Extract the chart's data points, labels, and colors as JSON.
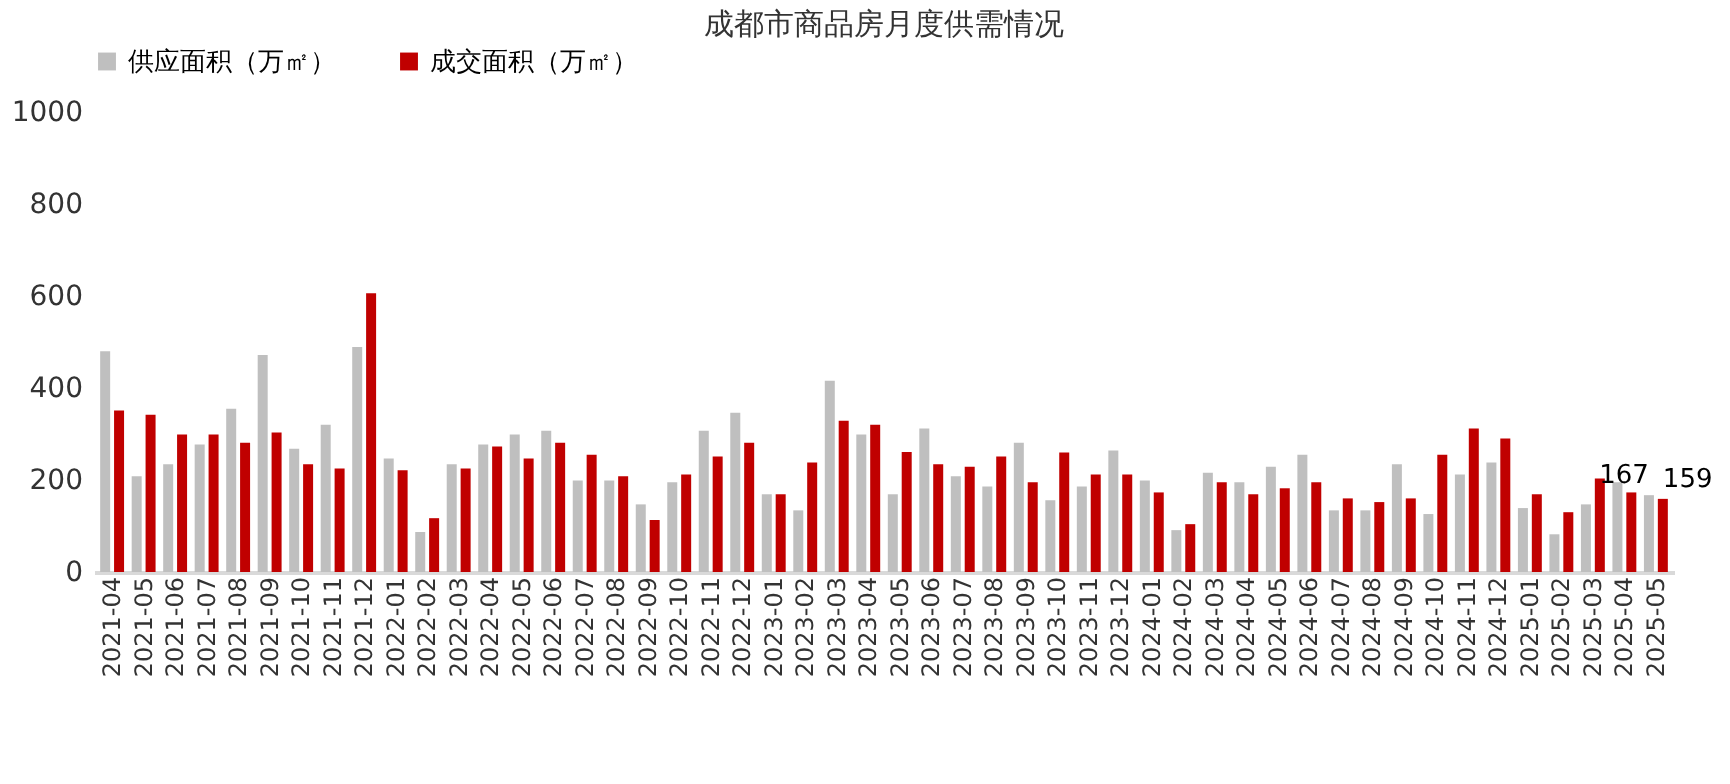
{
  "chart_data": {
    "type": "bar",
    "title": "成都市商品房月度供需情况",
    "categories": [
      "2021-04",
      "2021-05",
      "2021-06",
      "2021-07",
      "2021-08",
      "2021-09",
      "2021-10",
      "2021-11",
      "2021-12",
      "2022-01",
      "2022-02",
      "2022-03",
      "2022-04",
      "2022-05",
      "2022-06",
      "2022-07",
      "2022-08",
      "2022-09",
      "2022-10",
      "2022-11",
      "2022-12",
      "2023-01",
      "2023-02",
      "2023-03",
      "2023-04",
      "2023-05",
      "2023-06",
      "2023-07",
      "2023-08",
      "2023-09",
      "2023-10",
      "2023-11",
      "2023-12",
      "2024-01",
      "2024-02",
      "2024-03",
      "2024-04",
      "2024-05",
      "2024-06",
      "2024-07",
      "2024-08",
      "2024-09",
      "2024-10",
      "2024-11",
      "2024-12",
      "2025-01",
      "2025-02",
      "2025-03",
      "2025-04",
      "2025-05"
    ],
    "series": [
      {
        "name": "供应面积（万㎡）",
        "color": "#bfbfbf",
        "values": [
          480,
          208,
          234,
          277,
          355,
          472,
          268,
          320,
          489,
          247,
          87,
          234,
          277,
          299,
          307,
          199,
          199,
          147,
          195,
          307,
          346,
          169,
          134,
          416,
          299,
          169,
          312,
          208,
          186,
          281,
          156,
          186,
          264,
          199,
          91,
          216,
          195,
          229,
          255,
          134,
          134,
          234,
          126,
          212,
          238,
          139,
          82,
          147,
          195,
          167
        ],
        "value_labels": [
          null,
          null,
          null,
          null,
          null,
          null,
          null,
          null,
          null,
          null,
          null,
          null,
          null,
          null,
          null,
          null,
          null,
          null,
          null,
          null,
          null,
          null,
          null,
          null,
          null,
          null,
          null,
          null,
          null,
          null,
          null,
          null,
          null,
          null,
          null,
          null,
          null,
          null,
          null,
          null,
          null,
          null,
          null,
          null,
          null,
          null,
          null,
          null,
          null,
          "167"
        ]
      },
      {
        "name": "成交面积（万㎡）",
        "color": "#c00000",
        "values": [
          351,
          342,
          299,
          299,
          281,
          303,
          234,
          225,
          606,
          221,
          117,
          225,
          273,
          247,
          281,
          255,
          208,
          113,
          212,
          251,
          281,
          169,
          238,
          329,
          320,
          261,
          234,
          229,
          251,
          195,
          260,
          212,
          212,
          173,
          104,
          195,
          169,
          182,
          195,
          160,
          152,
          160,
          255,
          312,
          290,
          169,
          130,
          203,
          173,
          159
        ],
        "value_labels": [
          null,
          null,
          null,
          null,
          null,
          null,
          null,
          null,
          null,
          null,
          null,
          null,
          null,
          null,
          null,
          null,
          null,
          null,
          null,
          null,
          null,
          null,
          null,
          null,
          null,
          null,
          null,
          null,
          null,
          null,
          null,
          null,
          null,
          null,
          null,
          null,
          null,
          null,
          null,
          null,
          null,
          null,
          null,
          null,
          null,
          null,
          null,
          null,
          null,
          "159"
        ]
      }
    ],
    "ylim": [
      0,
      1000
    ],
    "yticks": [
      0,
      200,
      400,
      600,
      800,
      1000
    ],
    "grid": false,
    "legend": "top"
  }
}
